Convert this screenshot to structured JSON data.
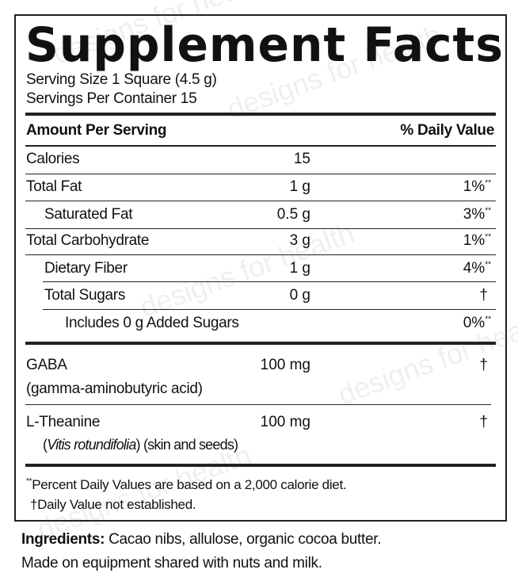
{
  "title": "Supplement Facts",
  "serving_size": "Serving Size 1 Square (4.5 g)",
  "servings_per_container": "Servings Per Container 15",
  "header": {
    "amount": "Amount Per Serving",
    "daily_value": "% Daily Value"
  },
  "nutrients": [
    {
      "name": "Calories",
      "amount": "15",
      "dv": ""
    },
    {
      "name": "Total Fat",
      "amount": "1 g",
      "dv": "1%",
      "mark": "**"
    },
    {
      "name": "Saturated Fat",
      "amount": "0.5 g",
      "dv": "3%",
      "mark": "**"
    },
    {
      "name": "Total Carbohydrate",
      "amount": "3 g",
      "dv": "1%",
      "mark": "**"
    },
    {
      "name": "Dietary Fiber",
      "amount": "1 g",
      "dv": "4%",
      "mark": "**"
    },
    {
      "name": "Total Sugars",
      "amount": "0 g",
      "dv": "†"
    },
    {
      "name": "Includes 0 g Added Sugars",
      "amount": "",
      "dv": "0%",
      "mark": "**"
    }
  ],
  "ingredients": [
    {
      "name": "GABA",
      "sub": "(gamma-aminobutyric acid)",
      "amount": "100 mg",
      "dv": "†"
    },
    {
      "name": "L-Theanine",
      "sub_italic": "Vitis rotundifolia",
      "sub_rest": ") (skin and seeds)",
      "sub_open": "(",
      "amount": "100 mg",
      "dv": "†"
    }
  ],
  "footnotes": {
    "percent_mark": "**",
    "percent": "Percent Daily Values are based on a 2,000 calorie diet.",
    "dagger_mark": "†",
    "dagger": "Daily Value not established."
  },
  "ingredients_text": {
    "label": "Ingredients:",
    "list": " Cacao nibs, allulose, organic cocoa butter.",
    "allergen": "Made on equipment shared with nuts and milk."
  },
  "watermark": "designs for health"
}
